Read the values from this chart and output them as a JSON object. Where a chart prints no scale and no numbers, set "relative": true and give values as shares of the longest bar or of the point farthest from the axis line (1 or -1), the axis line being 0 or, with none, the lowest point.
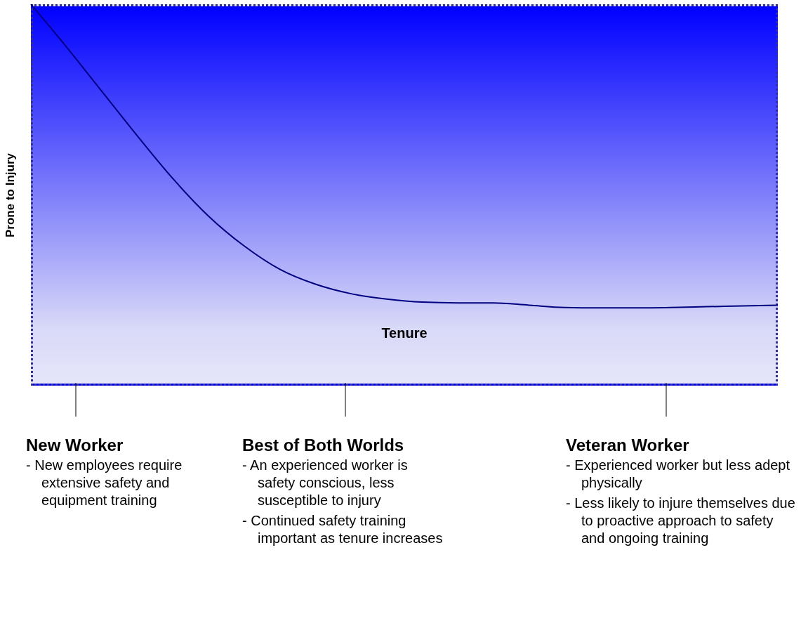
{
  "chart_data": {
    "type": "line",
    "relative": true,
    "ylabel": "Prone to Injury",
    "xlabel": "Tenure",
    "categories": [
      null,
      null,
      null,
      null,
      null,
      null,
      null,
      null,
      null,
      null,
      null,
      null,
      null,
      null,
      null,
      null,
      null,
      null,
      null,
      null,
      null,
      null
    ],
    "series": [
      {
        "color": "#000080",
        "values": [
          1.0,
          0.888,
          0.771,
          0.654,
          0.542,
          0.444,
          0.366,
          0.305,
          0.266,
          0.241,
          0.227,
          0.219,
          0.217,
          0.217,
          0.211,
          0.205,
          0.204,
          0.204,
          0.205,
          0.207,
          0.209,
          0.211
        ]
      }
    ],
    "marker": "none",
    "line_style": "solid",
    "annotations": [
      "New Worker\n- New employees require extensive safety and equipment training",
      "Best of Both Worlds\n- An experienced worker is safety conscious, less susceptible to injury\n- Continued safety training important as tenure increases",
      "Veteran Worker\n- Experienced worker but less adept physically\n- Less likely to injure themselves due to proactive approach to safety and ongoing training"
    ]
  }
}
